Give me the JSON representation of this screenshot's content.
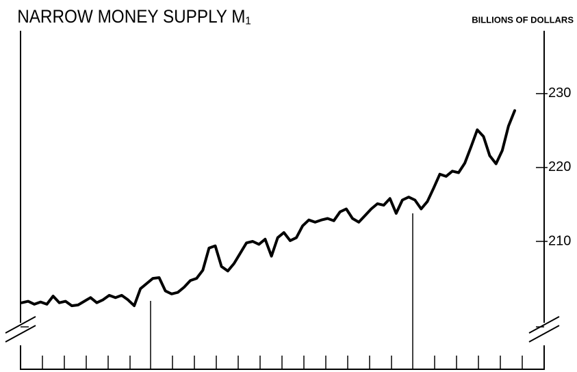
{
  "chart_data": {
    "type": "line",
    "title": "NARROW MONEY SUPPLY M₁",
    "y_label": "BILLIONS OF DOLLARS",
    "values": [
      201.7,
      201.9,
      201.5,
      201.8,
      201.5,
      202.6,
      201.7,
      201.9,
      201.3,
      201.4,
      201.9,
      202.4,
      201.7,
      202.1,
      202.7,
      202.4,
      202.7,
      202.1,
      201.3,
      203.6,
      204.3,
      205.0,
      205.1,
      203.3,
      202.9,
      203.1,
      203.8,
      204.7,
      205.0,
      206.1,
      209.1,
      209.4,
      206.6,
      206.0,
      207.0,
      208.4,
      209.8,
      210.0,
      209.6,
      210.3,
      208.0,
      210.5,
      211.2,
      210.1,
      210.5,
      212.1,
      212.9,
      212.6,
      212.9,
      213.1,
      212.8,
      214.0,
      214.4,
      213.1,
      212.6,
      213.5,
      214.4,
      215.1,
      214.9,
      215.8,
      213.8,
      215.6,
      216.0,
      215.6,
      214.4,
      215.4,
      217.2,
      219.1,
      218.8,
      219.5,
      219.3,
      220.6,
      222.8,
      225.1,
      224.2,
      221.6,
      220.5,
      222.3,
      225.6,
      227.7
    ],
    "color": "#000000",
    "ylim": [
      192.7,
      238.5
    ],
    "yticks": [
      210,
      220,
      230
    ],
    "y_axis_side": "right"
  }
}
